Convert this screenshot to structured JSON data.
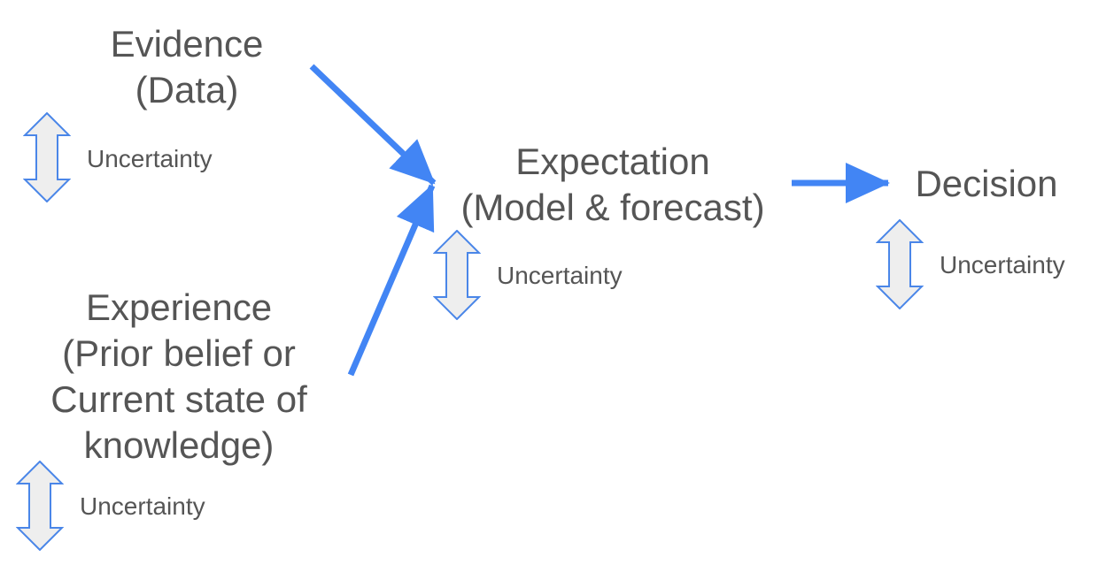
{
  "evidence": {
    "title": "Evidence",
    "subtitle": "(Data)",
    "uncertainty_label": "Uncertainty"
  },
  "experience": {
    "title": "Experience",
    "lines": [
      "(Prior belief or",
      "Current state of",
      "knowledge)"
    ],
    "uncertainty_label": "Uncertainty"
  },
  "expectation": {
    "title": "Expectation",
    "subtitle": "(Model & forecast)",
    "uncertainty_label": "Uncertainty"
  },
  "decision": {
    "title": "Decision",
    "uncertainty_label": "Uncertainty"
  },
  "colors": {
    "arrow": "#4285f4",
    "text": "#555555",
    "uncertainty_fill": "#eeeeee",
    "uncertainty_stroke": "#4a86e8"
  }
}
